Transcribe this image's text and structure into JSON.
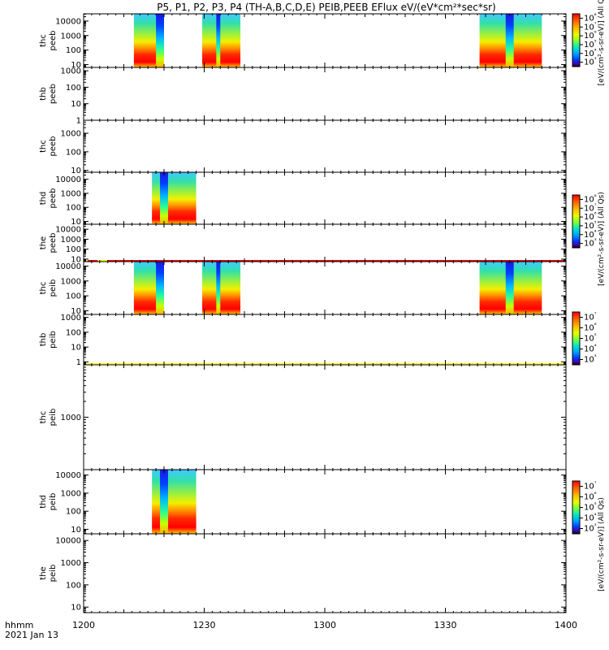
{
  "chart_data": {
    "type": "heatmap",
    "title": "P5, P1, P2, P3, P4 (TH-A,B,C,D,E) PEIB,PEEB EFlux eV/(eV*cm²*sec*sr)",
    "x_axis": {
      "label_line1": "hhmm",
      "label_line2": "2021 Jan 13",
      "range_minutes": [
        720,
        840
      ],
      "ticks": [
        "1200",
        "1230",
        "1300",
        "1330",
        "1400"
      ]
    },
    "panels": [
      {
        "name": "thc peeb",
        "label_top": "thc",
        "label_bottom": "peeb",
        "y_ticks": [
          "10",
          "100",
          "1000",
          "10000"
        ],
        "log_range": [
          0.8,
          4.5
        ],
        "blocks": [
          {
            "start": 732.5,
            "end": 740,
            "cold_at": 738,
            "cold_end": 740
          },
          {
            "start": 749.5,
            "end": 759,
            "gap_at": 753,
            "gap_end": 754
          },
          {
            "start": 818.5,
            "end": 834,
            "cold_at": 825,
            "cold_end": 827
          }
        ],
        "colorbar": {
          "ticks": [
            "10³",
            "10⁴",
            "10⁵",
            "10⁶",
            "10⁷",
            "10⁸"
          ],
          "label": "[eV/(cm²-s-sr-eV)] (All Qs)"
        },
        "status": []
      },
      {
        "name": "thb peeb",
        "label_top": "thb",
        "label_bottom": "peeb",
        "y_ticks": [
          "1",
          "10",
          "100",
          "1000"
        ],
        "log_range": [
          0,
          3.2
        ],
        "blocks": [],
        "status": []
      },
      {
        "name": "thc peeb",
        "label_top": "thc",
        "label_bottom": "peeb",
        "y_ticks": [
          "10",
          "100",
          "1000"
        ],
        "log_range": [
          0.9,
          3.7
        ],
        "blocks": [],
        "status": []
      },
      {
        "name": "thd peeb",
        "label_top": "thd",
        "label_bottom": "peeb",
        "y_ticks": [
          "10",
          "100",
          "1000",
          "10000"
        ],
        "log_range": [
          0.8,
          4.5
        ],
        "blocks": [
          {
            "start": 737,
            "end": 748,
            "cold_at": 739,
            "cold_end": 741
          }
        ],
        "colorbar": {
          "ticks": [
            "10³",
            "10⁴",
            "10⁵",
            "10⁶",
            "10⁷",
            "10⁸"
          ],
          "label": "[eV/(cm²-s-sr-eV)] (All Qs)"
        },
        "status": []
      },
      {
        "name": "the peeb",
        "label_top": "the",
        "label_bottom": "peeb",
        "y_ticks": [
          "10",
          "100",
          "1000",
          "10000"
        ],
        "log_range": [
          0.75,
          4.5
        ],
        "blocks": [],
        "status": [
          [
            720,
            721,
            "yellow"
          ],
          [
            721,
            723.5,
            "red"
          ],
          [
            723.5,
            726,
            "yellow"
          ],
          [
            726,
            840,
            "red"
          ]
        ]
      },
      {
        "name": "thc peib",
        "label_top": "thc",
        "label_bottom": "peib",
        "y_ticks": [
          "10",
          "100",
          "1000",
          "10000"
        ],
        "log_range": [
          0.75,
          4.3
        ],
        "blocks": [
          {
            "start": 732.5,
            "end": 740,
            "cold_at": 738,
            "cold_end": 740
          },
          {
            "start": 749.5,
            "end": 759,
            "gap_at": 753,
            "gap_end": 754
          },
          {
            "start": 818.5,
            "end": 834,
            "cold_at": 825,
            "cold_end": 827
          }
        ],
        "colorbar": {
          "ticks": [
            "10³",
            "10⁴",
            "10⁵",
            "10⁶",
            "10⁷"
          ],
          "label": "[eV/(cm²-s-sr-eV)] (All Qs)"
        },
        "status": []
      },
      {
        "name": "thb peib",
        "label_top": "thb",
        "label_bottom": "peib",
        "y_ticks": [
          "1",
          "10",
          "100",
          "1000"
        ],
        "log_range": [
          -0.2,
          3.2
        ],
        "blocks": [],
        "status": [
          [
            720,
            840,
            "yellow"
          ]
        ]
      },
      {
        "name": "thc peib",
        "label_top": "thc",
        "label_bottom": "peib",
        "y_ticks": [
          "1000"
        ],
        "log_range": [
          2.0,
          4.0
        ],
        "blocks": [],
        "status": [
          [
            720,
            734,
            "red"
          ],
          [
            734,
            736,
            "yellow"
          ],
          [
            736,
            753.5,
            "red"
          ],
          [
            753.5,
            755.5,
            "yellow"
          ],
          [
            755.5,
            784,
            "red"
          ],
          [
            784,
            786,
            "yellow"
          ],
          [
            786,
            804,
            "red"
          ],
          [
            804,
            806,
            "yellow"
          ],
          [
            806,
            822,
            "red"
          ],
          [
            822,
            824,
            "yellow"
          ],
          [
            824,
            840,
            "red"
          ]
        ]
      },
      {
        "name": "thd peib",
        "label_top": "thd",
        "label_bottom": "peib",
        "y_ticks": [
          "10",
          "100",
          "1000",
          "10000"
        ],
        "log_range": [
          0.75,
          4.3
        ],
        "blocks": [
          {
            "start": 737,
            "end": 748,
            "cold_at": 739,
            "cold_end": 741
          }
        ],
        "colorbar": {
          "ticks": [
            "10³",
            "10⁴",
            "10⁵",
            "10⁶",
            "10⁷"
          ],
          "label": "[eV/(cm²-s-sr-eV)] (All Qs)"
        },
        "status": [
          [
            720,
            829.5,
            "yellow"
          ],
          [
            829.5,
            840,
            "red"
          ]
        ]
      },
      {
        "name": "the peib",
        "label_top": "the",
        "label_bottom": "peib",
        "y_ticks": [
          "10",
          "100",
          "1000",
          "10000"
        ],
        "log_range": [
          0.75,
          4.3
        ],
        "blocks": [],
        "status": []
      }
    ],
    "colors": {
      "red": "#ff0000",
      "yellow": "#ffff00",
      "axis": "#000000"
    }
  }
}
